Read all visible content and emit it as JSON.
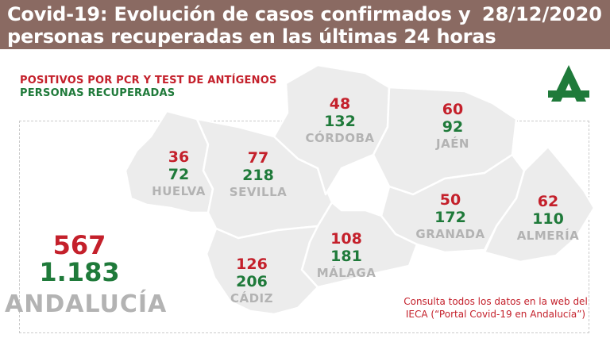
{
  "header": {
    "title_line1": "Covid-19: Evolución de casos confirmados y",
    "title_line2": "personas recuperadas en las últimas 24 horas",
    "date": "28/12/2020"
  },
  "legend": {
    "positives": "POSITIVOS POR PCR Y TEST DE ANTÍGENOS",
    "recovered": "PERSONAS RECUPERADAS"
  },
  "colors": {
    "header_bg": "#8a6a62",
    "positives": "#c4202b",
    "recovered": "#1f7a3a",
    "map_fill": "#ececec",
    "province_name": "#b3b3b3",
    "logo": "#1f7a3a"
  },
  "logo": {
    "icon": "junta-de-andalucia-logo-icon"
  },
  "provinces": [
    {
      "name": "HUELVA",
      "positives": "36",
      "recovered": "72"
    },
    {
      "name": "SEVILLA",
      "positives": "77",
      "recovered": "218"
    },
    {
      "name": "CÓRDOBA",
      "positives": "48",
      "recovered": "132"
    },
    {
      "name": "JAÉN",
      "positives": "60",
      "recovered": "92"
    },
    {
      "name": "GRANADA",
      "positives": "50",
      "recovered": "172"
    },
    {
      "name": "ALMERÍA",
      "positives": "62",
      "recovered": "110"
    },
    {
      "name": "MÁLAGA",
      "positives": "108",
      "recovered": "181"
    },
    {
      "name": "CÁDIZ",
      "positives": "126",
      "recovered": "206"
    }
  ],
  "total": {
    "name": "ANDALUCÍA",
    "positives": "567",
    "recovered": "1.183"
  },
  "footnote": {
    "line1": "Consulta todos los datos en la web del",
    "line2": "IECA (“Portal Covid-19 en Andalucía”)"
  }
}
